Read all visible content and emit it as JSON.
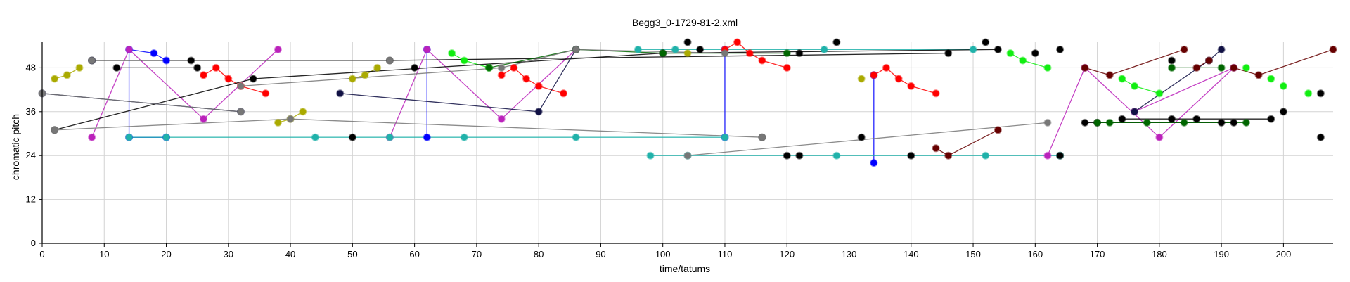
{
  "chart_data": {
    "type": "scatter",
    "title": "Begg3_0-1729-81-2.xml",
    "xlabel": "time/tatums",
    "ylabel": "chromatic pitch",
    "xlim": [
      0,
      208
    ],
    "ylim": [
      0,
      55
    ],
    "xticks": [
      0,
      10,
      20,
      30,
      40,
      50,
      60,
      70,
      80,
      90,
      100,
      110,
      120,
      130,
      140,
      150,
      160,
      170,
      180,
      190,
      200
    ],
    "yticks": [
      0,
      12,
      24,
      36,
      48
    ],
    "grid": true,
    "series": [
      {
        "color": "#0000ff",
        "points": [
          [
            14,
            53
          ],
          [
            18,
            52
          ],
          [
            20,
            50
          ],
          [
            14,
            29
          ],
          [
            20,
            29
          ],
          [
            62,
            53
          ],
          [
            62,
            29
          ],
          [
            110,
            53
          ],
          [
            110,
            29
          ],
          [
            134,
            46
          ],
          [
            134,
            22
          ]
        ],
        "edges": [
          [
            0,
            1
          ],
          [
            1,
            2
          ],
          [
            0,
            3
          ],
          [
            3,
            4
          ],
          [
            5,
            6
          ],
          [
            7,
            8
          ],
          [
            9,
            10
          ]
        ]
      },
      {
        "color": "#ff0000",
        "points": [
          [
            26,
            46
          ],
          [
            28,
            48
          ],
          [
            30,
            45
          ],
          [
            32,
            43
          ],
          [
            36,
            41
          ],
          [
            74,
            46
          ],
          [
            76,
            48
          ],
          [
            78,
            45
          ],
          [
            80,
            43
          ],
          [
            84,
            41
          ],
          [
            110,
            53
          ],
          [
            112,
            55
          ],
          [
            114,
            52
          ],
          [
            116,
            50
          ],
          [
            120,
            48
          ],
          [
            134,
            46
          ],
          [
            136,
            48
          ],
          [
            138,
            45
          ],
          [
            140,
            43
          ],
          [
            144,
            41
          ]
        ],
        "edges": [
          [
            0,
            1
          ],
          [
            1,
            2
          ],
          [
            2,
            3
          ],
          [
            3,
            4
          ],
          [
            5,
            6
          ],
          [
            6,
            7
          ],
          [
            7,
            8
          ],
          [
            8,
            9
          ],
          [
            10,
            11
          ],
          [
            11,
            12
          ],
          [
            12,
            13
          ],
          [
            13,
            14
          ],
          [
            15,
            16
          ],
          [
            16,
            17
          ],
          [
            17,
            18
          ],
          [
            18,
            19
          ]
        ]
      },
      {
        "color": "#bb22bb",
        "points": [
          [
            8,
            29
          ],
          [
            14,
            53
          ],
          [
            26,
            34
          ],
          [
            38,
            53
          ],
          [
            56,
            29
          ],
          [
            62,
            53
          ],
          [
            74,
            34
          ],
          [
            86,
            53
          ],
          [
            162,
            24
          ],
          [
            168,
            48
          ],
          [
            180,
            29
          ],
          [
            192,
            48
          ],
          [
            176,
            36
          ]
        ],
        "edges": [
          [
            0,
            1
          ],
          [
            1,
            2
          ],
          [
            2,
            3
          ],
          [
            4,
            5
          ],
          [
            5,
            6
          ],
          [
            6,
            7
          ],
          [
            8,
            9
          ],
          [
            9,
            10
          ],
          [
            10,
            11
          ],
          [
            11,
            12
          ]
        ]
      },
      {
        "color": "#20b2aa",
        "points": [
          [
            14,
            29
          ],
          [
            20,
            29
          ],
          [
            44,
            29
          ],
          [
            56,
            29
          ],
          [
            68,
            29
          ],
          [
            86,
            29
          ],
          [
            110,
            29
          ],
          [
            96,
            53
          ],
          [
            102,
            53
          ],
          [
            126,
            53
          ],
          [
            150,
            53
          ],
          [
            98,
            24
          ],
          [
            104,
            24
          ],
          [
            128,
            24
          ],
          [
            152,
            24
          ],
          [
            164,
            24
          ]
        ],
        "edges": [
          [
            0,
            1
          ],
          [
            1,
            2
          ],
          [
            2,
            3
          ],
          [
            3,
            4
          ],
          [
            4,
            5
          ],
          [
            5,
            6
          ],
          [
            7,
            8
          ],
          [
            8,
            9
          ],
          [
            9,
            10
          ],
          [
            11,
            12
          ],
          [
            12,
            13
          ],
          [
            13,
            14
          ],
          [
            14,
            15
          ]
        ]
      },
      {
        "color": "#11ee11",
        "points": [
          [
            66,
            52
          ],
          [
            68,
            50
          ],
          [
            72,
            48
          ],
          [
            156,
            52
          ],
          [
            158,
            50
          ],
          [
            162,
            48
          ],
          [
            174,
            45
          ],
          [
            176,
            43
          ],
          [
            180,
            41
          ],
          [
            194,
            48
          ],
          [
            198,
            45
          ],
          [
            200,
            43
          ],
          [
            204,
            41
          ]
        ],
        "edges": [
          [
            0,
            1
          ],
          [
            1,
            2
          ],
          [
            3,
            4
          ],
          [
            4,
            5
          ],
          [
            6,
            7
          ],
          [
            7,
            8
          ]
        ]
      },
      {
        "color": "#aaaa00",
        "points": [
          [
            2,
            45
          ],
          [
            4,
            46
          ],
          [
            6,
            48
          ],
          [
            38,
            33
          ],
          [
            40,
            34
          ],
          [
            42,
            36
          ],
          [
            50,
            45
          ],
          [
            52,
            46
          ],
          [
            54,
            48
          ],
          [
            104,
            52
          ],
          [
            132,
            45
          ]
        ],
        "edges": [
          [
            0,
            1
          ],
          [
            1,
            2
          ],
          [
            3,
            4
          ],
          [
            4,
            5
          ],
          [
            6,
            7
          ],
          [
            7,
            8
          ]
        ]
      },
      {
        "color": "#000000",
        "points": [
          [
            8,
            50
          ],
          [
            12,
            48
          ],
          [
            24,
            50
          ],
          [
            25,
            48
          ],
          [
            34,
            45
          ],
          [
            56,
            50
          ],
          [
            60,
            48
          ],
          [
            100,
            52
          ],
          [
            104,
            55
          ],
          [
            106,
            53
          ],
          [
            122,
            52
          ],
          [
            128,
            55
          ],
          [
            146,
            52
          ],
          [
            152,
            55
          ],
          [
            154,
            53
          ],
          [
            160,
            52
          ],
          [
            164,
            53
          ],
          [
            182,
            50
          ],
          [
            200,
            36
          ],
          [
            206,
            41
          ],
          [
            50,
            29
          ],
          [
            116,
            29
          ],
          [
            132,
            29
          ],
          [
            120,
            24
          ],
          [
            122,
            24
          ],
          [
            140,
            24
          ],
          [
            164,
            24
          ],
          [
            168,
            33
          ],
          [
            170,
            33
          ],
          [
            174,
            34
          ],
          [
            182,
            34
          ],
          [
            186,
            34
          ],
          [
            190,
            33
          ],
          [
            192,
            33
          ],
          [
            198,
            34
          ],
          [
            206,
            29
          ],
          [
            2,
            31
          ]
        ],
        "edges": [
          [
            0,
            2
          ],
          [
            2,
            5
          ],
          [
            1,
            3
          ],
          [
            5,
            12
          ],
          [
            36,
            4
          ],
          [
            4,
            7
          ],
          [
            7,
            14
          ],
          [
            27,
            33
          ],
          [
            29,
            34
          ]
        ]
      },
      {
        "color": "#111144",
        "points": [
          [
            0,
            41
          ],
          [
            8,
            50
          ],
          [
            32,
            36
          ],
          [
            48,
            41
          ],
          [
            80,
            36
          ],
          [
            86,
            53
          ],
          [
            176,
            36
          ],
          [
            188,
            50
          ],
          [
            190,
            53
          ]
        ],
        "edges": [
          [
            0,
            2
          ],
          [
            3,
            4
          ],
          [
            4,
            5
          ],
          [
            6,
            7
          ],
          [
            7,
            8
          ]
        ]
      },
      {
        "color": "#660000",
        "points": [
          [
            144,
            26
          ],
          [
            146,
            24
          ],
          [
            154,
            31
          ],
          [
            168,
            48
          ],
          [
            172,
            46
          ],
          [
            184,
            53
          ],
          [
            186,
            48
          ],
          [
            188,
            50
          ],
          [
            192,
            48
          ],
          [
            196,
            46
          ],
          [
            208,
            53
          ]
        ],
        "edges": [
          [
            0,
            1
          ],
          [
            1,
            2
          ],
          [
            3,
            4
          ],
          [
            4,
            5
          ],
          [
            6,
            7
          ],
          [
            8,
            9
          ],
          [
            9,
            10
          ]
        ]
      },
      {
        "color": "#006600",
        "points": [
          [
            72,
            48
          ],
          [
            86,
            53
          ],
          [
            100,
            52
          ],
          [
            120,
            52
          ],
          [
            170,
            33
          ],
          [
            172,
            33
          ],
          [
            178,
            33
          ],
          [
            184,
            33
          ],
          [
            194,
            33
          ],
          [
            182,
            48
          ],
          [
            190,
            48
          ]
        ],
        "edges": [
          [
            0,
            1
          ],
          [
            1,
            2
          ],
          [
            2,
            3
          ],
          [
            4,
            5
          ],
          [
            5,
            6
          ],
          [
            6,
            7
          ],
          [
            7,
            8
          ],
          [
            9,
            10
          ]
        ]
      },
      {
        "color": "#777777",
        "points": [
          [
            2,
            31
          ],
          [
            40,
            34
          ],
          [
            116,
            29
          ],
          [
            32,
            43
          ],
          [
            74,
            48
          ],
          [
            86,
            53
          ],
          [
            110,
            52
          ],
          [
            104,
            24
          ],
          [
            162,
            33
          ],
          [
            0,
            41
          ],
          [
            32,
            36
          ],
          [
            8,
            50
          ],
          [
            56,
            50
          ]
        ],
        "edges": [
          [
            0,
            1
          ],
          [
            1,
            2
          ],
          [
            3,
            4
          ],
          [
            4,
            5
          ],
          [
            5,
            6
          ],
          [
            7,
            8
          ],
          [
            9,
            10
          ],
          [
            11,
            12
          ]
        ]
      }
    ]
  }
}
